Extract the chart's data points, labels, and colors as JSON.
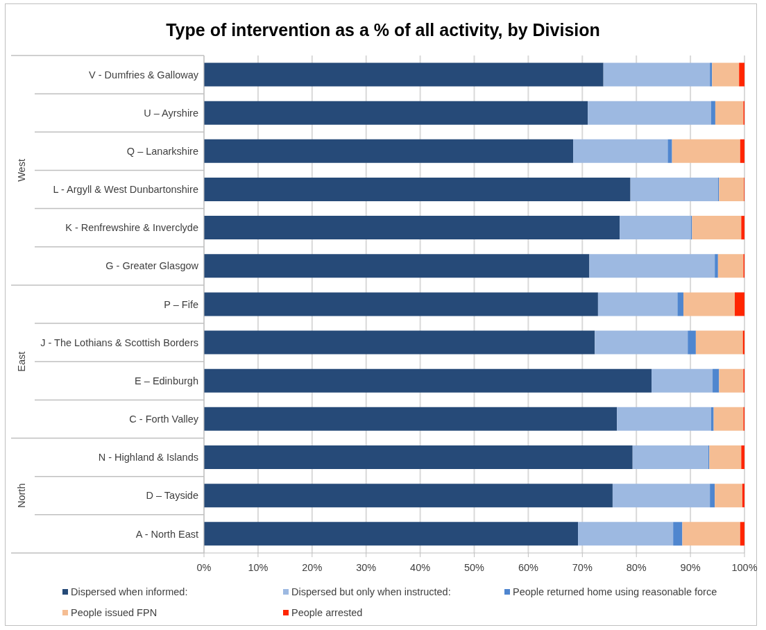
{
  "chart_data": {
    "type": "bar",
    "orientation": "horizontal",
    "stacked": true,
    "title": "Type of intervention as a % of all activity, by Division",
    "categories": [
      "V - Dumfries & Galloway",
      "U – Ayrshire",
      "Q – Lanarkshire",
      "L - Argyll & West Dunbartonshire",
      "K - Renfrewshire & Inverclyde",
      "G - Greater Glasgow",
      "P – Fife",
      "J - The Lothians & Scottish Borders",
      "E – Edinburgh",
      "C - Forth Valley",
      "N - Highland & Islands",
      "D – Tayside",
      "A - North East"
    ],
    "series": [
      {
        "name": "Dispersed when informed:",
        "color": "#264a78",
        "values": [
          73.9,
          71.0,
          68.3,
          78.9,
          76.9,
          71.3,
          72.9,
          72.3,
          82.8,
          76.4,
          79.3,
          75.6,
          69.2
        ]
      },
      {
        "name": "Dispersed but only when instructed:",
        "color": "#9db9e1",
        "values": [
          19.7,
          22.8,
          17.5,
          16.2,
          13.2,
          23.2,
          14.7,
          17.2,
          11.3,
          17.4,
          14.0,
          18.0,
          17.6
        ]
      },
      {
        "name": "People returned home using reasonable force",
        "color": "#4f86cf",
        "values": [
          0.4,
          0.8,
          0.8,
          0.2,
          0.2,
          0.6,
          1.1,
          1.5,
          1.2,
          0.5,
          0.2,
          0.9,
          1.7
        ]
      },
      {
        "name": "People issued FPN",
        "color": "#f5bd93",
        "values": [
          5.0,
          5.2,
          12.6,
          4.6,
          9.1,
          4.7,
          9.5,
          8.7,
          4.5,
          5.5,
          5.9,
          5.1,
          10.7
        ]
      },
      {
        "name": "People arrested",
        "color": "#ff2600",
        "values": [
          1.0,
          0.2,
          0.8,
          0.1,
          0.6,
          0.2,
          1.8,
          0.3,
          0.2,
          0.2,
          0.6,
          0.4,
          0.8
        ]
      }
    ],
    "xlim": [
      0,
      100
    ],
    "xticks": [
      {
        "value": 0,
        "label": "0%"
      },
      {
        "value": 10,
        "label": "10%"
      },
      {
        "value": 20,
        "label": "20%"
      },
      {
        "value": 30,
        "label": "30%"
      },
      {
        "value": 40,
        "label": "40%"
      },
      {
        "value": 50,
        "label": "50%"
      },
      {
        "value": 60,
        "label": "60%"
      },
      {
        "value": 70,
        "label": "70%"
      },
      {
        "value": 80,
        "label": "80%"
      },
      {
        "value": 90,
        "label": "90%"
      },
      {
        "value": 100,
        "label": "100%"
      }
    ],
    "grid": "x",
    "legend": "bottom",
    "annotations": [
      "West",
      "East",
      "North"
    ]
  }
}
